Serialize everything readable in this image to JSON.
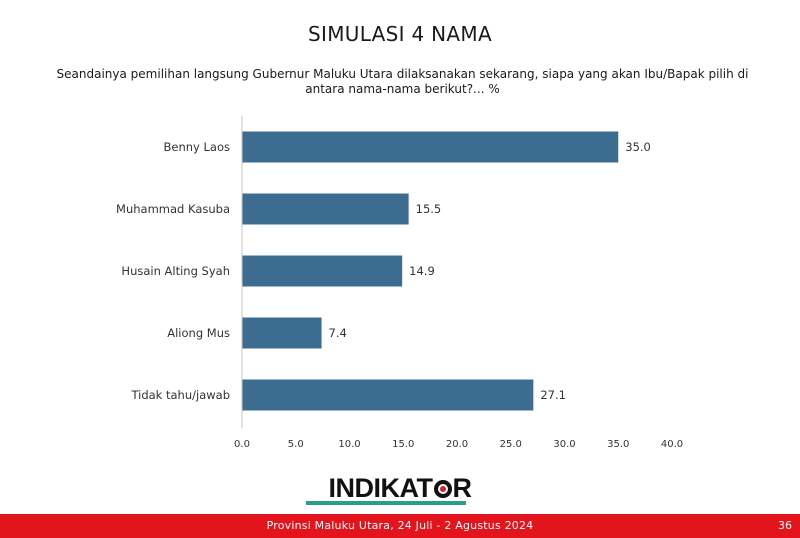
{
  "slide": {
    "title": "SIMULASI 4 NAMA",
    "question": "Seandainya pemilihan langsung Gubernur Maluku Utara dilaksanakan sekarang, siapa yang akan Ibu/Bapak pilih di antara nama-nama berikut?... %",
    "logo_text_before": "INDIKAT",
    "logo_text_after": "R",
    "footer": "Provinsi Maluku Utara, 24 Juli - 2 Agustus 2024",
    "page_number": "36"
  },
  "colors": {
    "bar": "#3c6c8f",
    "footer": "#e3141c",
    "accent_stripe": "#2a9d8f"
  },
  "chart_data": {
    "type": "bar",
    "orientation": "horizontal",
    "title": "",
    "xlabel": "",
    "ylabel": "",
    "categories": [
      "Benny Laos",
      "Muhammad Kasuba",
      "Husain Alting Syah",
      "Aliong Mus",
      "Tidak tahu/jawab"
    ],
    "values": [
      35.0,
      15.5,
      14.9,
      7.4,
      27.1
    ],
    "value_labels": [
      "35.0",
      "15.5",
      "14.9",
      "7.4",
      "27.1"
    ],
    "xlim": [
      0,
      40
    ],
    "ticks": [
      0,
      5,
      10,
      15,
      20,
      25,
      30,
      35,
      40
    ],
    "tick_labels": [
      "0.0",
      "5.0",
      "10.0",
      "15.0",
      "20.0",
      "25.0",
      "30.0",
      "35.0",
      "40.0"
    ],
    "grid": false,
    "legend": "none"
  }
}
